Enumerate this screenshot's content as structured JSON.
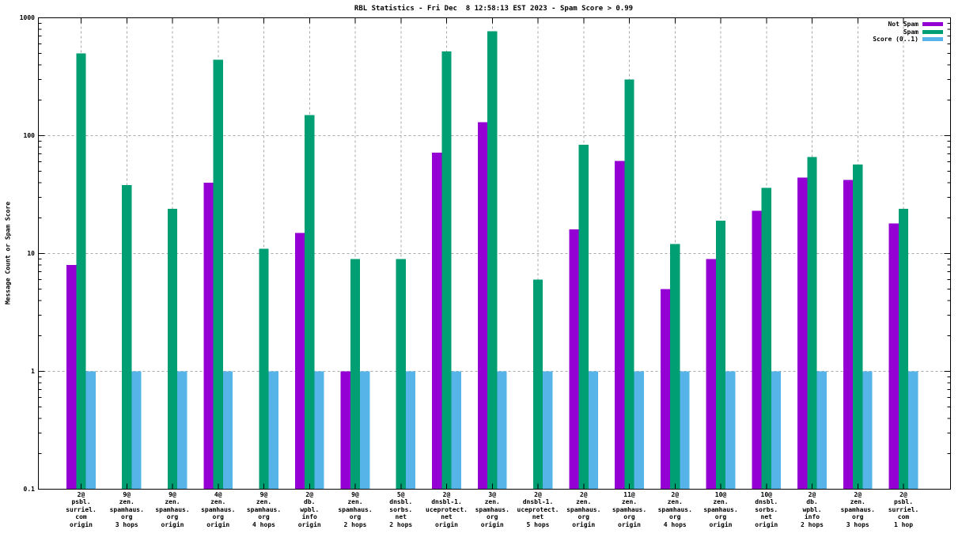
{
  "title": "RBL Statistics - Fri Dec  8 12:58:13 EST 2023 - Spam Score > 0.99",
  "chart_data": {
    "type": "bar",
    "bar_layout": "grouped",
    "title": "RBL Statistics - Fri Dec  8 12:58:13 EST 2023 - Spam Score > 0.99",
    "ylabel": "Message Count or Spam Score",
    "xlabel": "",
    "yscale": "log",
    "ylim": [
      0.1,
      1000
    ],
    "grid": true,
    "legend_position": "top-right-inside",
    "yticks": [
      {
        "label": "0.1",
        "value": 0.1
      },
      {
        "label": "1",
        "value": 1
      },
      {
        "label": "10",
        "value": 10
      },
      {
        "label": "100",
        "value": 100
      },
      {
        "label": "1000",
        "value": 1000
      }
    ],
    "categories": [
      "2@\npsbl.\nsurriel.\ncom\norigin",
      "9@\nzen.\nspamhaus.\norg\n3 hops",
      "9@\nzen.\nspamhaus.\norg\norigin",
      "4@\nzen.\nspamhaus.\norg\norigin",
      "9@\nzen.\nspamhaus.\norg\n4 hops",
      "2@\ndb.\nwpbl.\ninfo\norigin",
      "9@\nzen.\nspamhaus.\norg\n2 hops",
      "5@\ndnsbl.\nsorbs.\nnet\n2 hops",
      "2@\ndnsbl-1.\nuceprotect.\nnet\norigin",
      "3@\nzen.\nspamhaus.\norg\norigin",
      "2@\ndnsbl-1.\nuceprotect.\nnet\n5 hops",
      "2@\nzen.\nspamhaus.\norg\norigin",
      "11@\nzen.\nspamhaus.\norg\norigin",
      "2@\nzen.\nspamhaus.\norg\n4 hops",
      "10@\nzen.\nspamhaus.\norg\norigin",
      "10@\ndnsbl.\nsorbs.\nnet\norigin",
      "2@\ndb.\nwpbl.\ninfo\n2 hops",
      "2@\nzen.\nspamhaus.\norg\n3 hops",
      "2@\npsbl.\nsurriel.\ncom\n1 hop"
    ],
    "series": [
      {
        "key": "not-spam",
        "name": "Not Spam",
        "color": "#9400d3",
        "values": [
          8,
          0,
          0,
          40,
          0,
          15,
          1,
          0,
          72,
          130,
          0,
          16,
          61,
          5,
          9,
          23,
          44,
          42,
          18
        ]
      },
      {
        "key": "spam",
        "name": "Spam",
        "color": "#009e73",
        "values": [
          500,
          38,
          24,
          440,
          11,
          150,
          9,
          9,
          520,
          770,
          6,
          84,
          300,
          12,
          19,
          36,
          66,
          57,
          24
        ]
      },
      {
        "key": "score",
        "name": "Score (0..1)",
        "color": "#56b4e9",
        "values": [
          1,
          1,
          1,
          1,
          1,
          1,
          1,
          1,
          1,
          1,
          1,
          1,
          1,
          1,
          1,
          1,
          1,
          1,
          1
        ]
      }
    ],
    "grid_color": "#a8a8a8",
    "border_color": "#000000"
  }
}
